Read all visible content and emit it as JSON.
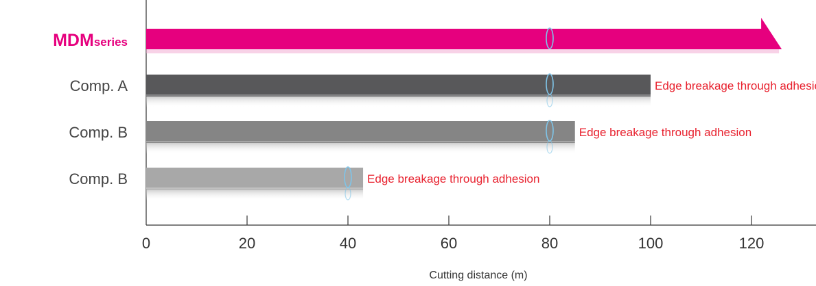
{
  "chart_data": {
    "type": "bar",
    "orientation": "horizontal",
    "categories": [
      {
        "main": "MDM",
        "sub": "series"
      },
      {
        "main": "Comp. A",
        "sub": ""
      },
      {
        "main": "Comp. B",
        "sub": ""
      },
      {
        "main": "Comp. B",
        "sub": ""
      }
    ],
    "values": [
      126,
      100,
      85,
      43
    ],
    "arrow_on_first": true,
    "annotations": [
      "",
      "Edge breakage through adhesion",
      "Edge breakage through adhesion",
      "Edge breakage through adhesion"
    ],
    "markers": [
      80,
      80,
      80,
      40
    ],
    "xlabel": "Cutting distance (m)",
    "xticks": [
      0,
      20,
      40,
      60,
      80,
      100,
      120
    ],
    "xlim": [
      0,
      132
    ],
    "colors": {
      "bars": [
        "#e6007e",
        "#58585a",
        "#858585",
        "#a8a8a8"
      ],
      "annotation": "#e8212e",
      "marker": "#7fc4e8",
      "axis": "#333333",
      "brand_label": "#e6007e",
      "category_label": "#444444"
    }
  }
}
